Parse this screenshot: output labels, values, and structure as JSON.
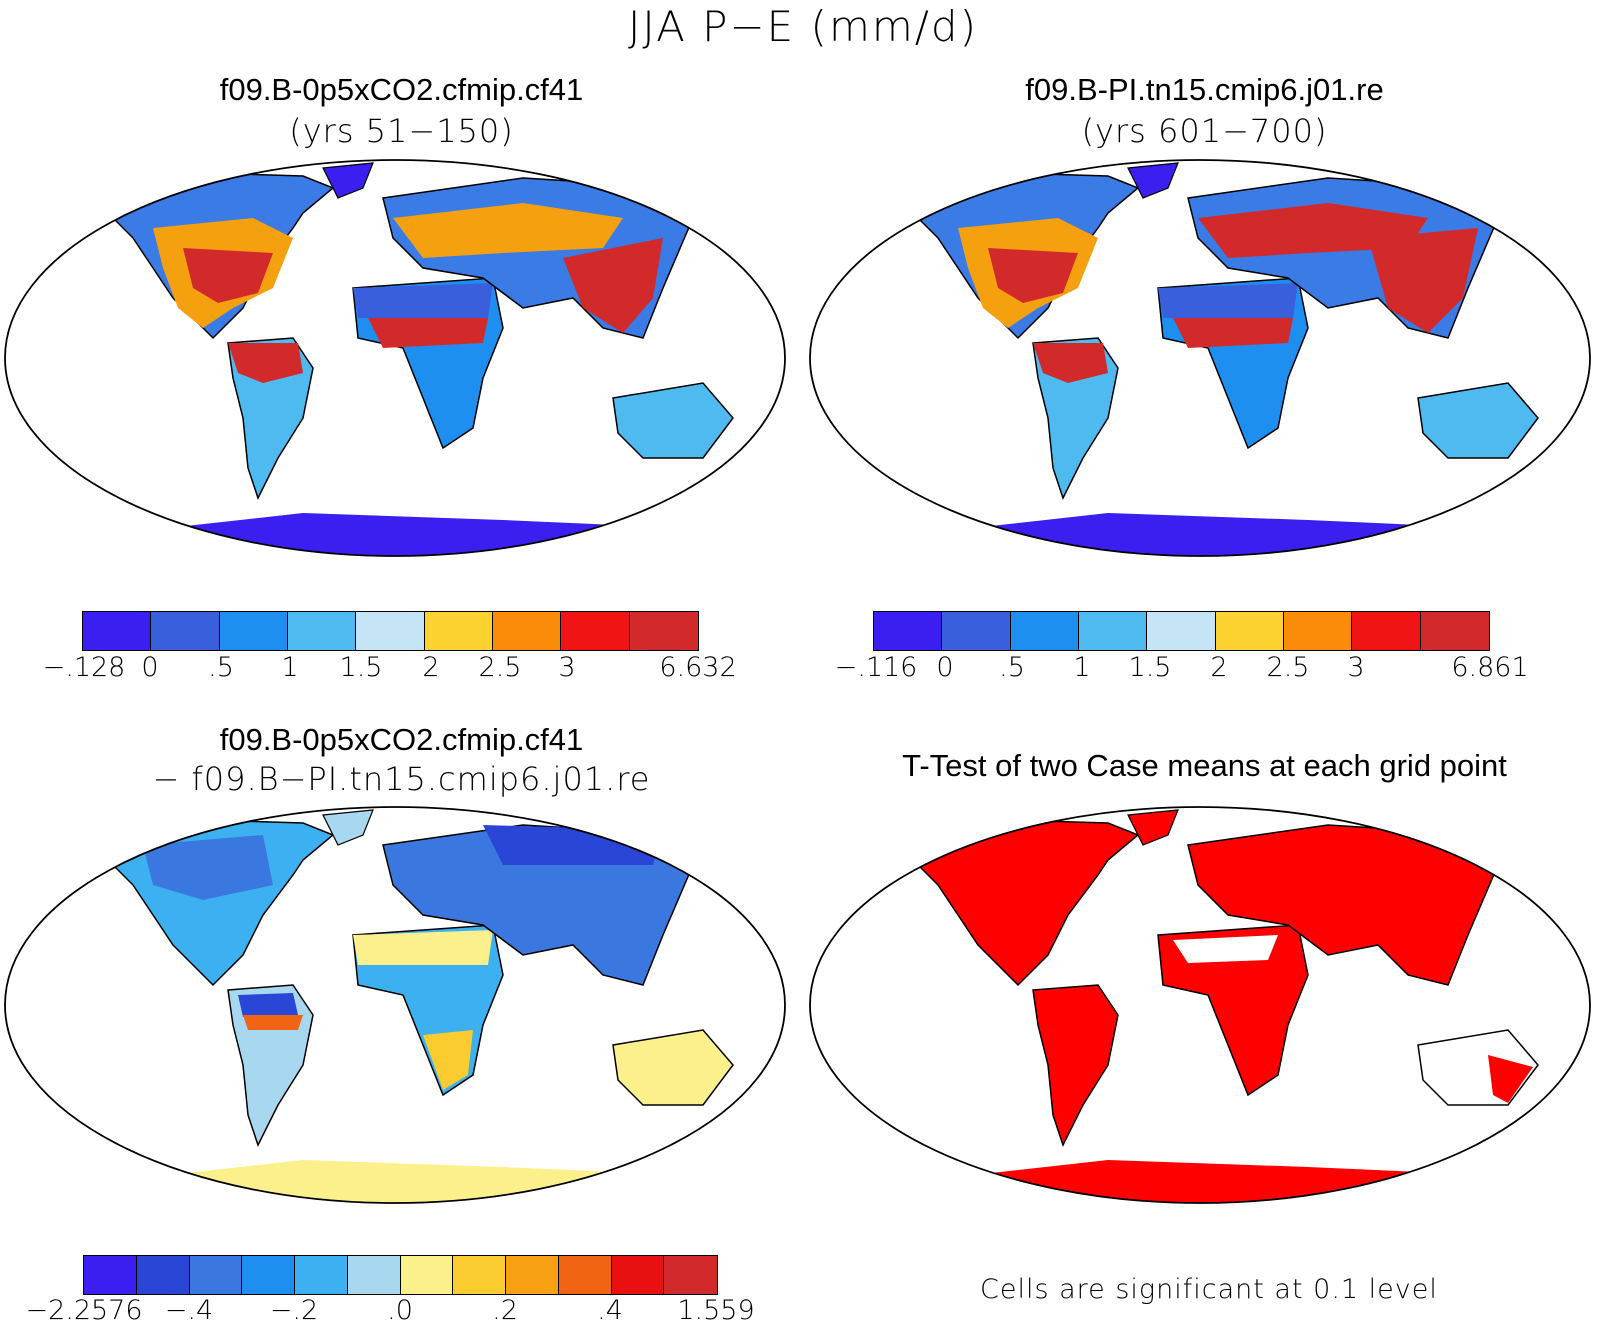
{
  "figure_title": "JJA P−E (mm/d)",
  "panels": {
    "top_left": {
      "title": "f09.B-0p5xCO2.cfmip.cf41",
      "subtitle": "(yrs 51−150)"
    },
    "top_right": {
      "title": "f09.B-PI.tn15.cmip6.j01.re",
      "subtitle": "(yrs 601−700)"
    },
    "bottom_left": {
      "title": "f09.B-0p5xCO2.cfmip.cf41",
      "subtitle": "− f09.B−PI.tn15.cmip6.j01.re"
    },
    "bottom_right": {
      "title": "T-Test of two Case means at each grid point",
      "note": "Cells are significant at 0.1 level"
    }
  },
  "colorbars": {
    "top_left": {
      "colors": [
        "#3a1ff0",
        "#3a5fdc",
        "#1e8ff0",
        "#4fbaf0",
        "#c5e5f6",
        "#fbd230",
        "#fa8c0a",
        "#f01414",
        "#d22a2a"
      ],
      "ticks": [
        "−.128",
        "0",
        ".5",
        "1",
        "1.5",
        "2",
        "2.5",
        "3",
        "6.632"
      ]
    },
    "top_right": {
      "colors": [
        "#3a1ff0",
        "#3a5fdc",
        "#1e8ff0",
        "#4fbaf0",
        "#c5e5f6",
        "#fbd230",
        "#fa8c0a",
        "#f01414",
        "#d22a2a"
      ],
      "ticks": [
        "−.116",
        "0",
        ".5",
        "1",
        "1.5",
        "2",
        "2.5",
        "3",
        "6.861"
      ]
    },
    "bottom_left": {
      "colors": [
        "#3a1ff0",
        "#2a46d6",
        "#3a78e0",
        "#1e8ff0",
        "#3cb0f0",
        "#a8d8f0",
        "#fcf08c",
        "#fbcc30",
        "#f8a014",
        "#f06414",
        "#e81010",
        "#d22a2a"
      ],
      "ticks": [
        "−2.2576",
        "−.4",
        "−.2",
        ".0",
        ".2",
        ".4",
        "1.559"
      ]
    }
  },
  "map_colors": {
    "ocean": "#ffffff",
    "outline": "#000000",
    "significant": "#ff0000"
  }
}
